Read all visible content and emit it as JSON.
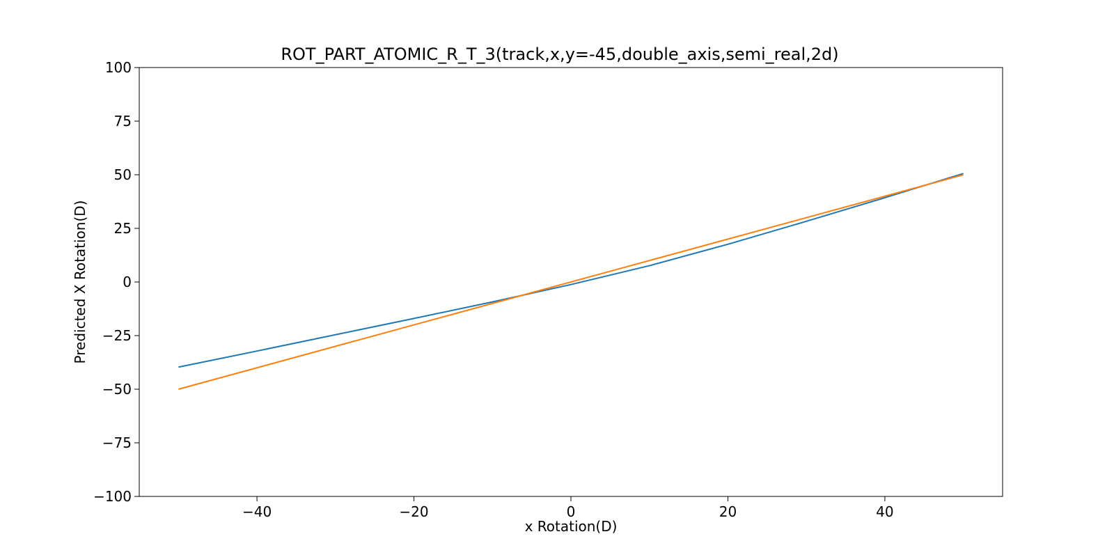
{
  "chart_data": {
    "type": "line",
    "title": "ROT_PART_ATOMIC_R_T_3(track,x,y=-45,double_axis,semi_real,2d)",
    "xlabel": "x Rotation(D)",
    "ylabel": "Predicted X Rotation(D)",
    "xlim": [
      -55,
      55
    ],
    "ylim": [
      -100,
      100
    ],
    "xticks": [
      -40,
      -20,
      0,
      20,
      40
    ],
    "yticks": [
      -100,
      -75,
      -50,
      -25,
      0,
      25,
      50,
      75,
      100
    ],
    "grid": false,
    "legend": "none",
    "series": [
      {
        "color": "#1f77b4",
        "x": [
          -50,
          -40,
          -30,
          -20,
          -10,
          0,
          10,
          20,
          30,
          40,
          50
        ],
        "y": [
          -39.7,
          -32.2,
          -24.6,
          -17.0,
          -9.3,
          -1.2,
          7.6,
          17.6,
          28.3,
          39.3,
          50.6
        ]
      },
      {
        "color": "#ff7f0e",
        "x": [
          -50,
          50
        ],
        "y": [
          -50,
          50
        ]
      }
    ]
  }
}
